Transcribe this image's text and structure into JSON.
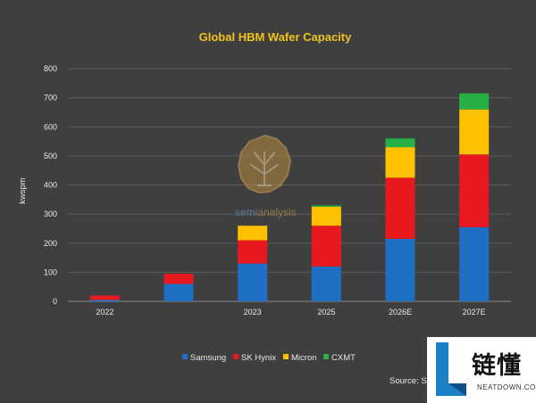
{
  "chart_data": {
    "type": "bar",
    "stacked": true,
    "title": "Global HBM Wafer Capacity",
    "xlabel": "",
    "ylabel": "kwspm",
    "ylim": [
      0,
      800
    ],
    "yticks": [
      0,
      100,
      200,
      300,
      400,
      500,
      600,
      700,
      800
    ],
    "grid": true,
    "legend_position": "bottom",
    "categories": [
      "2022",
      "",
      "2023",
      "2025",
      "2026E",
      "2027E"
    ],
    "series": [
      {
        "name": "Samsung",
        "color": "#1f6fc5",
        "values": [
          5,
          60,
          130,
          120,
          215,
          255
        ]
      },
      {
        "name": "SK Hynix",
        "color": "#e8181f",
        "values": [
          15,
          35,
          80,
          140,
          210,
          250
        ]
      },
      {
        "name": "Micron",
        "color": "#ffc000",
        "values": [
          0,
          0,
          50,
          65,
          105,
          155
        ]
      },
      {
        "name": "CXMT",
        "color": "#27b046",
        "values": [
          0,
          0,
          0,
          5,
          30,
          55
        ]
      }
    ]
  },
  "source": "Source: Se",
  "watermark": {
    "prefix": "semi",
    "suffix": "analysis"
  },
  "brand": {
    "chinese": "链懂",
    "english": "NEATDOWN.COM"
  }
}
